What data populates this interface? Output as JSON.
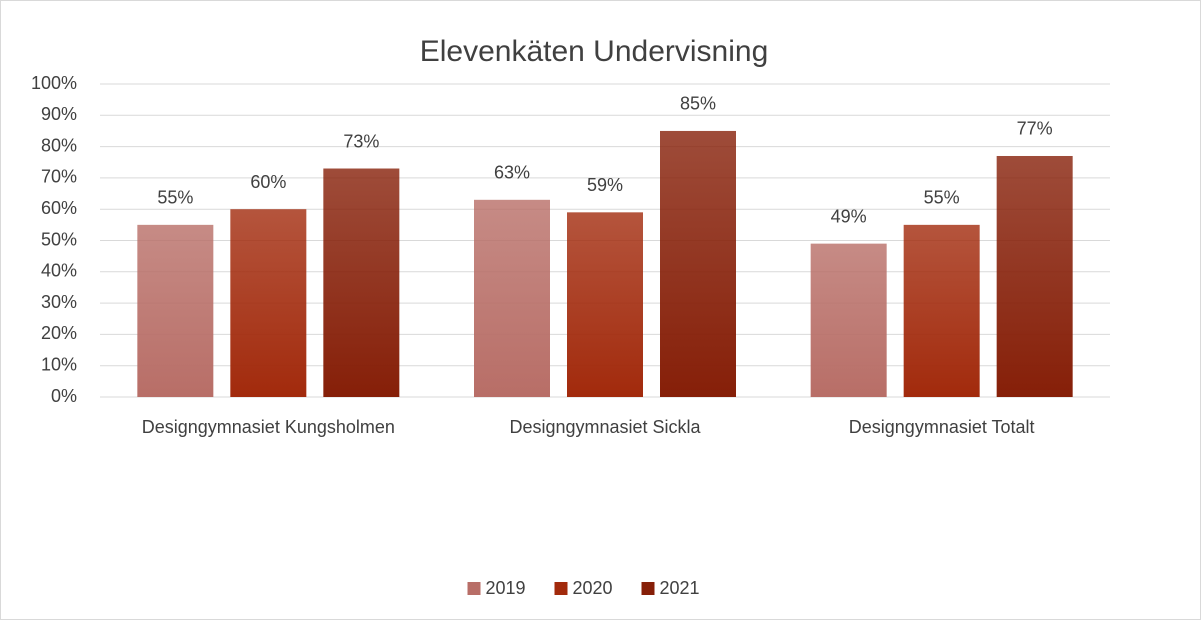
{
  "chart_data": {
    "type": "bar",
    "title": "Elevenkäten Undervisning",
    "categories": [
      "Designgymnasiet Kungsholmen",
      "Designgymnasiet Sickla",
      "Designgymnasiet Totalt"
    ],
    "series": [
      {
        "name": "2019",
        "color": "#b86e67",
        "values": [
          55,
          63,
          49
        ],
        "value_labels": [
          "55%",
          "63%",
          "49%"
        ]
      },
      {
        "name": "2020",
        "color": "#a22a0c",
        "values": [
          60,
          59,
          55
        ],
        "value_labels": [
          "60%",
          "59%",
          "55%"
        ]
      },
      {
        "name": "2021",
        "color": "#861f08",
        "values": [
          73,
          85,
          77
        ],
        "value_labels": [
          "73%",
          "85%",
          "77%"
        ]
      }
    ],
    "ylim": [
      0,
      100
    ],
    "yticks": [
      {
        "value": 0,
        "label": "0%"
      },
      {
        "value": 10,
        "label": "10%"
      },
      {
        "value": 20,
        "label": "20%"
      },
      {
        "value": 30,
        "label": "30%"
      },
      {
        "value": 40,
        "label": "40%"
      },
      {
        "value": 50,
        "label": "50%"
      },
      {
        "value": 60,
        "label": "60%"
      },
      {
        "value": 70,
        "label": "70%"
      },
      {
        "value": 80,
        "label": "80%"
      },
      {
        "value": 90,
        "label": "90%"
      },
      {
        "value": 100,
        "label": "100%"
      }
    ],
    "grid": true,
    "legend": "bottom"
  }
}
